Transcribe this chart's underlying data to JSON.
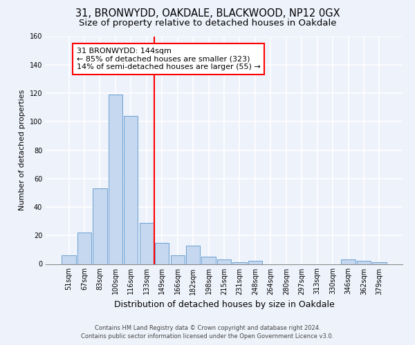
{
  "title1": "31, BRONWYDD, OAKDALE, BLACKWOOD, NP12 0GX",
  "title2": "Size of property relative to detached houses in Oakdale",
  "xlabel": "Distribution of detached houses by size in Oakdale",
  "ylabel": "Number of detached properties",
  "categories": [
    "51sqm",
    "67sqm",
    "83sqm",
    "100sqm",
    "116sqm",
    "133sqm",
    "149sqm",
    "166sqm",
    "182sqm",
    "198sqm",
    "215sqm",
    "231sqm",
    "248sqm",
    "264sqm",
    "280sqm",
    "297sqm",
    "313sqm",
    "330sqm",
    "346sqm",
    "362sqm",
    "379sqm"
  ],
  "values": [
    6,
    22,
    53,
    119,
    104,
    29,
    15,
    6,
    13,
    5,
    3,
    1,
    2,
    0,
    0,
    0,
    0,
    0,
    3,
    2,
    1
  ],
  "bar_color": "#c5d8f0",
  "bar_edge_color": "#6a9fd0",
  "ref_line_x": 5.5,
  "annotation_line1": "31 BRONWYDD: 144sqm",
  "annotation_line2": "← 85% of detached houses are smaller (323)",
  "annotation_line3": "14% of semi-detached houses are larger (55) →",
  "ylim": [
    0,
    160
  ],
  "yticks": [
    0,
    20,
    40,
    60,
    80,
    100,
    120,
    140,
    160
  ],
  "footer1": "Contains HM Land Registry data © Crown copyright and database right 2024.",
  "footer2": "Contains public sector information licensed under the Open Government Licence v3.0.",
  "bg_color": "#eef2fb",
  "plot_bg_color": "#eef2fb",
  "grid_color": "#ffffff",
  "title1_fontsize": 10.5,
  "title2_fontsize": 9.5,
  "tick_fontsize": 7,
  "ylabel_fontsize": 8,
  "xlabel_fontsize": 9,
  "annotation_fontsize": 8,
  "footer_fontsize": 6
}
